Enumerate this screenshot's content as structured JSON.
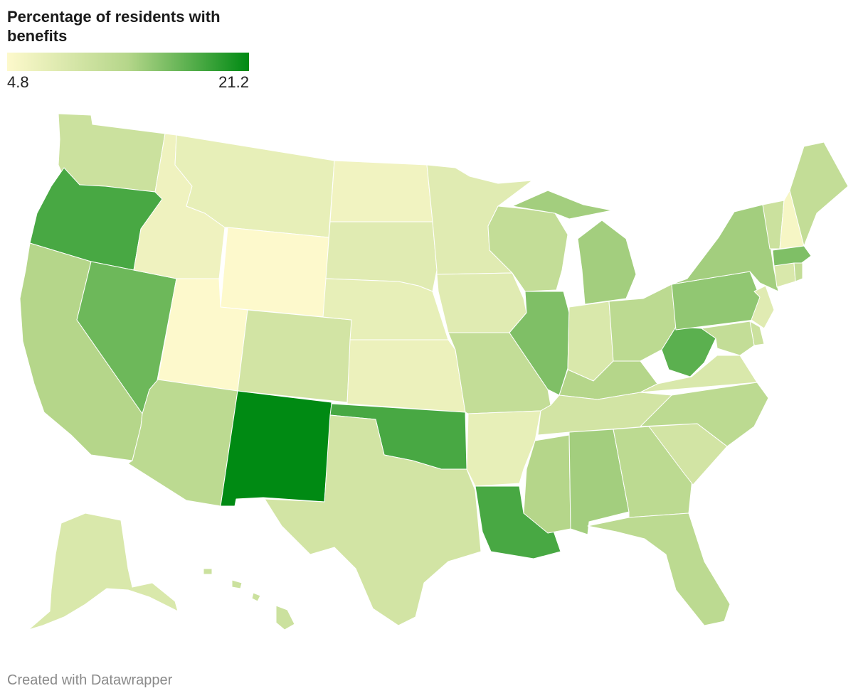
{
  "title": "Percentage of residents with benefits",
  "legend": {
    "min_label": "4.8",
    "max_label": "21.2",
    "min": 4.8,
    "max": 21.2,
    "color_low": "#fdf9cc",
    "color_mid": "#b5d68a",
    "color_high": "#008a13"
  },
  "footer": "Created with Datawrapper",
  "map_data": {
    "type": "choropleth-us-states",
    "states": [
      {
        "name": "Washington",
        "level": 0.35
      },
      {
        "name": "Oregon",
        "level": 0.8
      },
      {
        "name": "California",
        "level": 0.5
      },
      {
        "name": "Nevada",
        "level": 0.7
      },
      {
        "name": "Idaho",
        "level": 0.1
      },
      {
        "name": "Montana",
        "level": 0.15
      },
      {
        "name": "Wyoming",
        "level": 0.0
      },
      {
        "name": "Utah",
        "level": 0.0
      },
      {
        "name": "Arizona",
        "level": 0.45
      },
      {
        "name": "Colorado",
        "level": 0.3
      },
      {
        "name": "New Mexico",
        "level": 1.0
      },
      {
        "name": "North Dakota",
        "level": 0.08
      },
      {
        "name": "South Dakota",
        "level": 0.2
      },
      {
        "name": "Nebraska",
        "level": 0.15
      },
      {
        "name": "Kansas",
        "level": 0.12
      },
      {
        "name": "Oklahoma",
        "level": 0.8
      },
      {
        "name": "Texas",
        "level": 0.3
      },
      {
        "name": "Minnesota",
        "level": 0.2
      },
      {
        "name": "Iowa",
        "level": 0.2
      },
      {
        "name": "Missouri",
        "level": 0.4
      },
      {
        "name": "Arkansas",
        "level": 0.15
      },
      {
        "name": "Louisiana",
        "level": 0.8
      },
      {
        "name": "Wisconsin",
        "level": 0.4
      },
      {
        "name": "Illinois",
        "level": 0.65
      },
      {
        "name": "Michigan",
        "level": 0.55
      },
      {
        "name": "Indiana",
        "level": 0.25
      },
      {
        "name": "Ohio",
        "level": 0.45
      },
      {
        "name": "Kentucky",
        "level": 0.5
      },
      {
        "name": "Tennessee",
        "level": 0.3
      },
      {
        "name": "Mississippi",
        "level": 0.5
      },
      {
        "name": "Alabama",
        "level": 0.55
      },
      {
        "name": "Georgia",
        "level": 0.45
      },
      {
        "name": "Florida",
        "level": 0.45
      },
      {
        "name": "South Carolina",
        "level": 0.3
      },
      {
        "name": "North Carolina",
        "level": 0.45
      },
      {
        "name": "Virginia",
        "level": 0.25
      },
      {
        "name": "West Virginia",
        "level": 0.75
      },
      {
        "name": "Pennsylvania",
        "level": 0.6
      },
      {
        "name": "New York",
        "level": 0.55
      },
      {
        "name": "Vermont",
        "level": 0.35
      },
      {
        "name": "New Hampshire",
        "level": 0.05
      },
      {
        "name": "Maine",
        "level": 0.4
      },
      {
        "name": "Massachusetts",
        "level": 0.65
      },
      {
        "name": "Connecticut",
        "level": 0.25
      },
      {
        "name": "Rhode Island",
        "level": 0.4
      },
      {
        "name": "New Jersey",
        "level": 0.2
      },
      {
        "name": "Delaware",
        "level": 0.35
      },
      {
        "name": "Maryland",
        "level": 0.4
      },
      {
        "name": "Alaska",
        "level": 0.25
      },
      {
        "name": "Hawaii",
        "level": 0.35
      }
    ]
  }
}
